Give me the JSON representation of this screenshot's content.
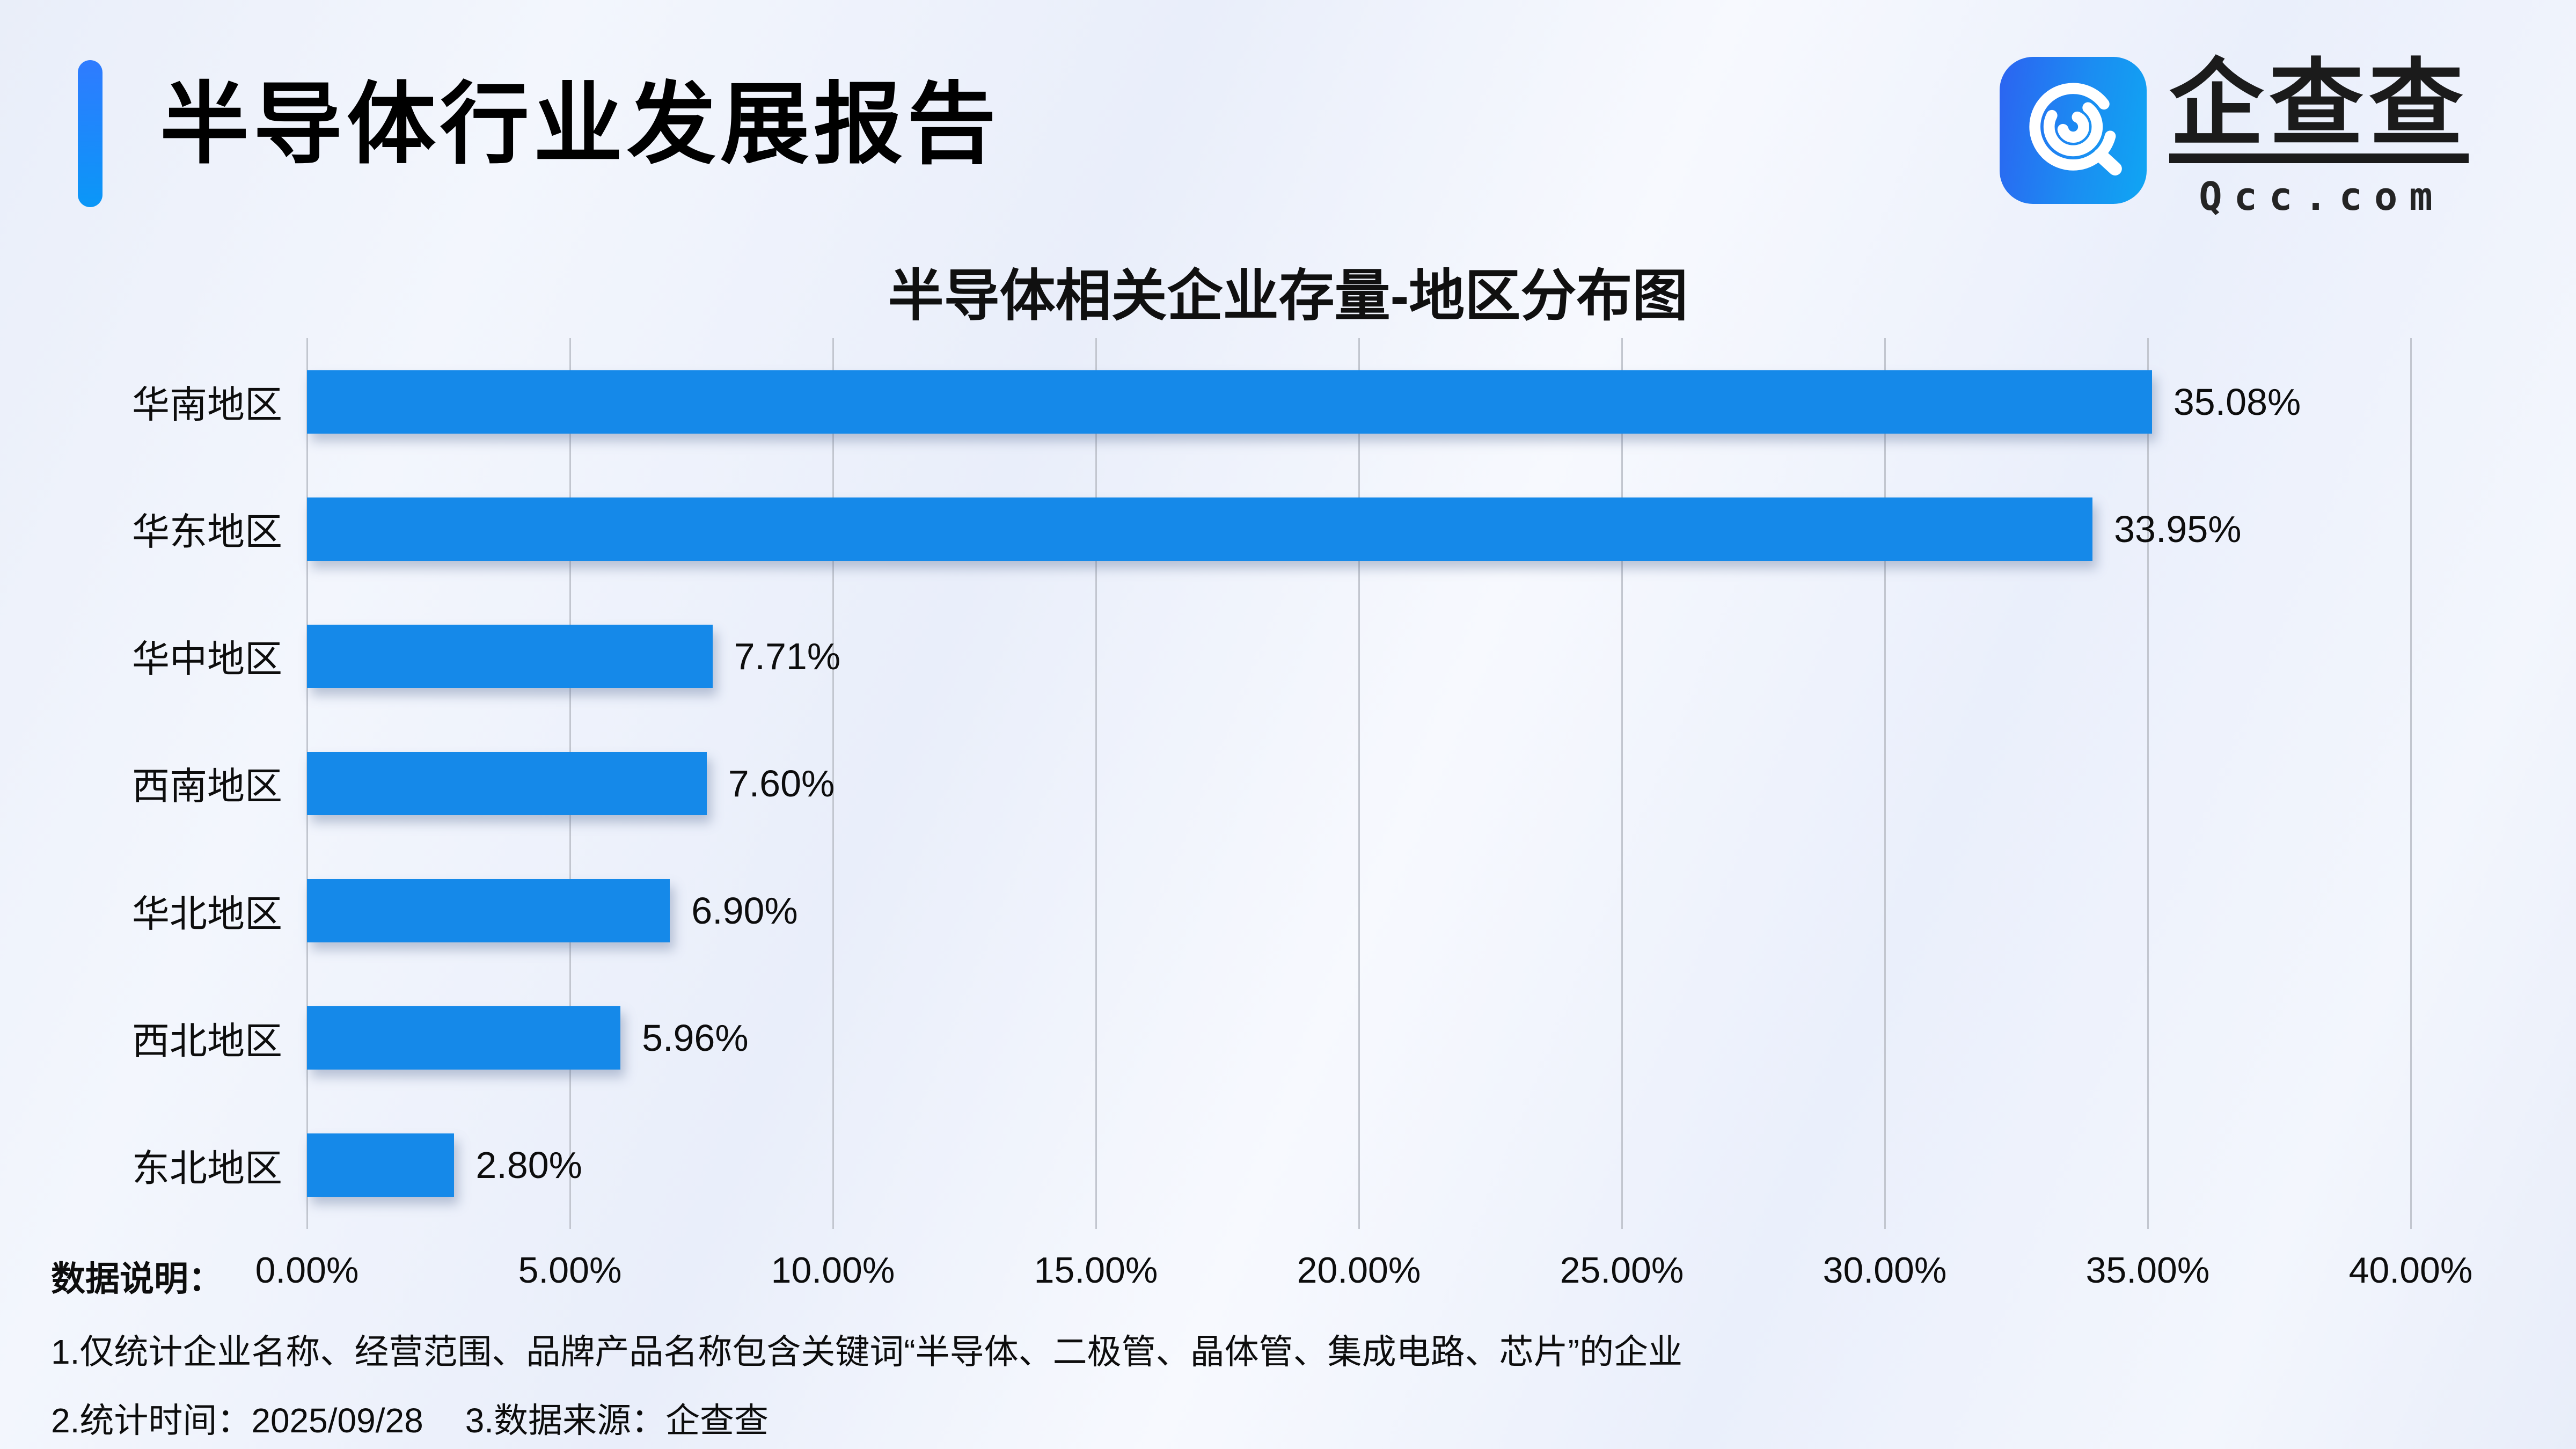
{
  "header": {
    "title": "半导体行业发展报告"
  },
  "logo": {
    "brand_cn": "企查查",
    "brand_domain": "Qcc.com",
    "icon": "qcc-concentric-q-magnifier",
    "icon_color_start": "#2c63f1",
    "icon_color_end": "#0fa6f3"
  },
  "chart_data": {
    "type": "bar",
    "orientation": "horizontal",
    "title": "半导体相关企业存量-地区分布图",
    "categories": [
      "华南地区",
      "华东地区",
      "华中地区",
      "西南地区",
      "华北地区",
      "西北地区",
      "东北地区"
    ],
    "values": [
      35.08,
      33.95,
      7.71,
      7.6,
      6.9,
      5.96,
      2.8
    ],
    "value_labels": [
      "35.08%",
      "33.95%",
      "7.71%",
      "7.60%",
      "6.90%",
      "5.96%",
      "2.80%"
    ],
    "x_ticks": [
      "0.00%",
      "5.00%",
      "10.00%",
      "15.00%",
      "20.00%",
      "25.00%",
      "30.00%",
      "35.00%",
      "40.00%"
    ],
    "xlim": [
      0,
      40
    ],
    "xlabel": "",
    "ylabel": "",
    "grid": true,
    "legend": null,
    "bar_color": "#1589e9",
    "gridline_color": "#c2c6cf"
  },
  "footer": {
    "label": "数据说明：",
    "note1": "1.仅统计企业名称、经营范围、品牌产品名称包含关键词“半导体、二极管、晶体管、集成电路、芯片”的企业",
    "note2": "2.统计时间：2025/09/28",
    "note3": "3.数据来源：企查查"
  }
}
